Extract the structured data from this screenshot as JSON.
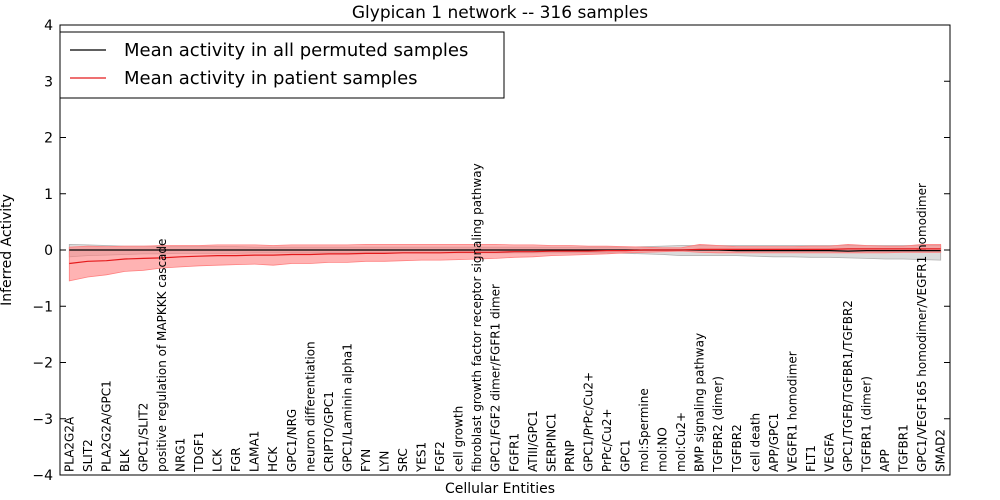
{
  "chart_data": {
    "type": "line",
    "title": "Glypican 1 network -- 316 samples",
    "xlabel": "Cellular Entities",
    "ylabel": "Inferred Activity",
    "ylim": [
      -4,
      4
    ],
    "yticks": [
      "−4",
      "−3",
      "−2",
      "−1",
      "0",
      "1",
      "2",
      "3",
      "4"
    ],
    "grid": false,
    "legend_position": "top-left",
    "colors": {
      "permuted": "#000000",
      "patient": "#e41a1c",
      "patient_band": "#ff8080",
      "permuted_band": "#b0b0b0"
    },
    "categories": [
      "PLA2G2A",
      "SLIT2",
      "PLA2G2A/GPC1",
      "BLK",
      "GPC1/SLIT2",
      "positive regulation of MAPKKK cascade",
      "NRG1",
      "TDGF1",
      "LCK",
      "FGR",
      "LAMA1",
      "HCK",
      "GPC1/NRG",
      "neuron differentiation",
      "CRIPTO/GPC1",
      "GPC1/Laminin alpha1",
      "FYN",
      "LYN",
      "SRC",
      "YES1",
      "FGF2",
      "cell growth",
      "fibroblast growth factor receptor signaling pathway",
      "GPC1/FGF2 dimer/FGFR1 dimer",
      "FGFR1",
      "ATIII/GPC1",
      "SERPINC1",
      "PRNP",
      "GPC1/PrPc/Cu2+",
      "PrPc/Cu2+",
      "GPC1",
      "mol:Spermine",
      "mol:NO",
      "mol:Cu2+",
      "BMP signaling pathway",
      "TGFBR2 (dimer)",
      "TGFBR2",
      "cell death",
      "APP/GPC1",
      "VEGFR1 homodimer",
      "FLT1",
      "VEGFA",
      "GPC1/TGFB/TGFBR1/TGFBR2",
      "TGFBR1 (dimer)",
      "APP",
      "TGFBR1",
      "GPC1/VEGF165 homodimer/VEGFR1 homodimer",
      "SMAD2"
    ],
    "series": [
      {
        "name": "Mean activity in all permuted samples",
        "values": [
          0,
          0,
          0,
          0,
          0,
          0,
          0,
          0,
          0,
          0,
          0,
          0,
          0,
          0,
          0,
          0,
          0,
          0,
          0,
          0,
          0,
          0,
          0,
          0,
          0,
          0,
          0,
          0,
          0,
          0,
          0,
          0,
          0,
          0,
          0,
          0,
          -0.01,
          -0.01,
          -0.01,
          -0.01,
          -0.01,
          -0.01,
          -0.02,
          -0.01,
          -0.01,
          -0.01,
          -0.01,
          -0.01
        ],
        "lower": [
          -0.12,
          -0.1,
          -0.09,
          -0.08,
          -0.07,
          -0.07,
          -0.06,
          -0.06,
          -0.06,
          -0.06,
          -0.05,
          -0.05,
          -0.05,
          -0.05,
          -0.05,
          -0.05,
          -0.05,
          -0.05,
          -0.05,
          -0.05,
          -0.05,
          -0.05,
          -0.05,
          -0.05,
          -0.05,
          -0.05,
          -0.05,
          -0.05,
          -0.05,
          -0.05,
          -0.06,
          -0.07,
          -0.08,
          -0.1,
          -0.1,
          -0.1,
          -0.1,
          -0.11,
          -0.12,
          -0.12,
          -0.13,
          -0.13,
          -0.14,
          -0.15,
          -0.16,
          -0.16,
          -0.17,
          -0.18
        ],
        "upper": [
          0.1,
          0.09,
          0.08,
          0.07,
          0.07,
          0.06,
          0.06,
          0.06,
          0.06,
          0.06,
          0.05,
          0.05,
          0.05,
          0.05,
          0.05,
          0.05,
          0.05,
          0.05,
          0.05,
          0.05,
          0.05,
          0.05,
          0.05,
          0.05,
          0.05,
          0.05,
          0.05,
          0.05,
          0.05,
          0.05,
          0.05,
          0.06,
          0.07,
          0.08,
          0.08,
          0.08,
          0.08,
          0.08,
          0.08,
          0.08,
          0.08,
          0.08,
          0.08,
          0.08,
          0.08,
          0.08,
          0.08,
          0.08
        ]
      },
      {
        "name": "Mean activity in patient samples",
        "values": [
          -0.24,
          -0.2,
          -0.19,
          -0.16,
          -0.15,
          -0.14,
          -0.12,
          -0.11,
          -0.1,
          -0.1,
          -0.09,
          -0.09,
          -0.08,
          -0.08,
          -0.07,
          -0.07,
          -0.06,
          -0.06,
          -0.05,
          -0.05,
          -0.05,
          -0.04,
          -0.04,
          -0.04,
          -0.03,
          -0.03,
          -0.02,
          -0.02,
          -0.02,
          -0.01,
          -0.01,
          0,
          0,
          0,
          0.01,
          0.01,
          0.01,
          0.01,
          0.01,
          0.01,
          0.01,
          0.01,
          0.02,
          0.02,
          0.02,
          0.02,
          0.02,
          0.02
        ],
        "lower": [
          -0.55,
          -0.48,
          -0.44,
          -0.38,
          -0.36,
          -0.32,
          -0.3,
          -0.28,
          -0.27,
          -0.26,
          -0.25,
          -0.27,
          -0.24,
          -0.24,
          -0.22,
          -0.22,
          -0.2,
          -0.2,
          -0.19,
          -0.18,
          -0.18,
          -0.17,
          -0.16,
          -0.15,
          -0.13,
          -0.12,
          -0.1,
          -0.09,
          -0.08,
          -0.07,
          -0.05,
          -0.04,
          -0.03,
          -0.02,
          -0.04,
          -0.05,
          -0.05,
          -0.05,
          -0.05,
          -0.05,
          -0.05,
          -0.05,
          -0.05,
          -0.05,
          -0.05,
          -0.04,
          -0.04,
          -0.04
        ],
        "upper": [
          0.05,
          0.07,
          0.06,
          0.07,
          0.07,
          0.08,
          0.08,
          0.08,
          0.09,
          0.09,
          0.09,
          0.08,
          0.09,
          0.09,
          0.09,
          0.09,
          0.1,
          0.1,
          0.1,
          0.1,
          0.1,
          0.1,
          0.1,
          0.1,
          0.09,
          0.09,
          0.08,
          0.08,
          0.07,
          0.07,
          0.06,
          0.05,
          0.04,
          0.04,
          0.1,
          0.08,
          0.06,
          0.06,
          0.06,
          0.06,
          0.07,
          0.07,
          0.1,
          0.08,
          0.07,
          0.07,
          0.1,
          0.1
        ]
      }
    ]
  }
}
